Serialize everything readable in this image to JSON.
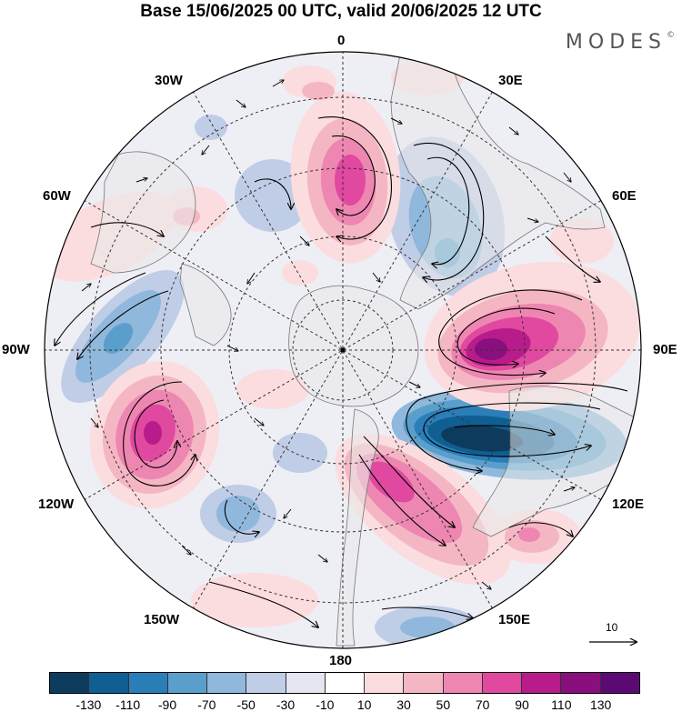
{
  "title": "Base 15/06/2025 00 UTC, valid 20/06/2025 12 UTC",
  "brand": "MODES",
  "brand_mark": "©",
  "longitudes": {
    "top": "0",
    "bottom": "180",
    "left": "90W",
    "right": "90E",
    "nw1": "30W",
    "nw2": "60W",
    "sw1": "120W",
    "sw2": "150W",
    "ne1": "30E",
    "ne2": "60E",
    "se1": "120E",
    "se2": "150E"
  },
  "vector_scale": {
    "label": "10"
  },
  "colorbar": {
    "colors": [
      "#0d3b5e",
      "#105f92",
      "#2a7fb8",
      "#5a9fcc",
      "#8fb8dc",
      "#c0cde6",
      "#e6e6f2",
      "#ffffff",
      "#fbdde0",
      "#f5b6c4",
      "#ee86b2",
      "#e0499f",
      "#b81c8a",
      "#8a0f7e",
      "#5b0a73"
    ],
    "labels": [
      "-130",
      "-110",
      "-90",
      "-70",
      "-50",
      "-30",
      "-10",
      "10",
      "30",
      "50",
      "70",
      "90",
      "110",
      "130"
    ]
  }
}
